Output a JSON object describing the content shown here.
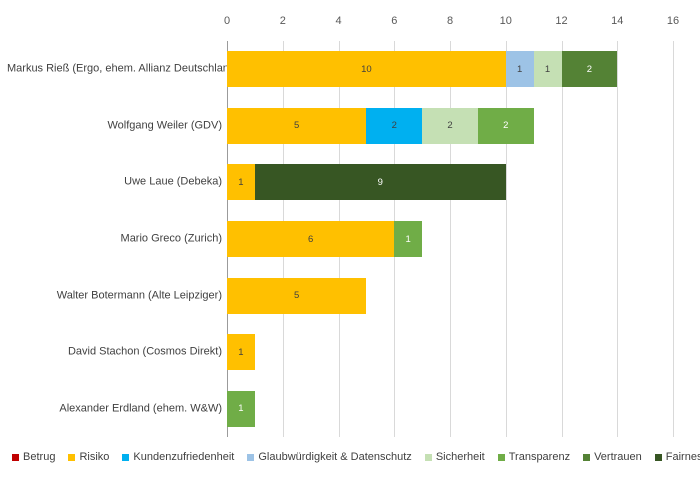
{
  "chart_data": {
    "type": "bar",
    "orientation": "horizontal",
    "stacked": true,
    "title": "",
    "xlabel": "",
    "ylabel": "",
    "grid": true,
    "x_axis": {
      "position": "top",
      "min": 0,
      "max": 16,
      "step": 2,
      "tick_labels": [
        "0",
        "2",
        "4",
        "6",
        "8",
        "10",
        "12",
        "14",
        "16"
      ]
    },
    "categories": [
      "Markus Rieß (Ergo, ehem. Allianz Deutschland)",
      "Wolfgang Weiler (GDV)",
      "Uwe Laue (Debeka)",
      "Mario Greco (Zurich)",
      "Walter Botermann (Alte Leipziger)",
      "David Stachon (Cosmos Direkt)",
      "Alexander Erdland (ehem. W&W)"
    ],
    "series": [
      {
        "name": "Betrug",
        "color": "#c00000",
        "label_color": "#404040",
        "values": [
          0,
          0,
          0,
          0,
          0,
          0,
          0
        ]
      },
      {
        "name": "Risiko",
        "color": "#ffc000",
        "label_color": "#404040",
        "values": [
          10,
          5,
          1,
          6,
          5,
          1,
          0
        ]
      },
      {
        "name": "Kundenzufriedenheit",
        "color": "#00b0f0",
        "label_color": "#404040",
        "values": [
          0,
          2,
          0,
          0,
          0,
          0,
          0
        ]
      },
      {
        "name": "Glaubwürdigkeit & Datenschutz",
        "color": "#9dc3e6",
        "label_color": "#404040",
        "values": [
          1,
          0,
          0,
          0,
          0,
          0,
          0
        ]
      },
      {
        "name": "Sicherheit",
        "color": "#c5e0b4",
        "label_color": "#404040",
        "values": [
          1,
          2,
          0,
          0,
          0,
          0,
          0
        ]
      },
      {
        "name": "Transparenz",
        "color": "#70ad47",
        "label_color": "#ffffff",
        "values": [
          0,
          2,
          0,
          1,
          0,
          0,
          1
        ]
      },
      {
        "name": "Vertrauen",
        "color": "#548235",
        "label_color": "#ffffff",
        "values": [
          2,
          0,
          0,
          0,
          0,
          0,
          0
        ]
      },
      {
        "name": "Fairness",
        "color": "#375623",
        "label_color": "#ffffff",
        "values": [
          0,
          0,
          9,
          0,
          0,
          0,
          0
        ]
      }
    ],
    "row_totals": [
      14,
      11,
      10,
      7,
      5,
      1,
      1
    ],
    "legend": {
      "position": "bottom",
      "entries": [
        "Betrug",
        "Risiko",
        "Kundenzufriedenheit",
        "Glaubwürdigkeit & Datenschutz",
        "Sicherheit",
        "Transparenz",
        "Vertrauen",
        "Fairness"
      ]
    },
    "layout_colors": {
      "gridline": "#d9d9d9",
      "axis_line": "#9b9b9b",
      "tick_label": "#595959",
      "category_label": "#404040",
      "legend_label": "#404040",
      "background": "#ffffff"
    }
  }
}
